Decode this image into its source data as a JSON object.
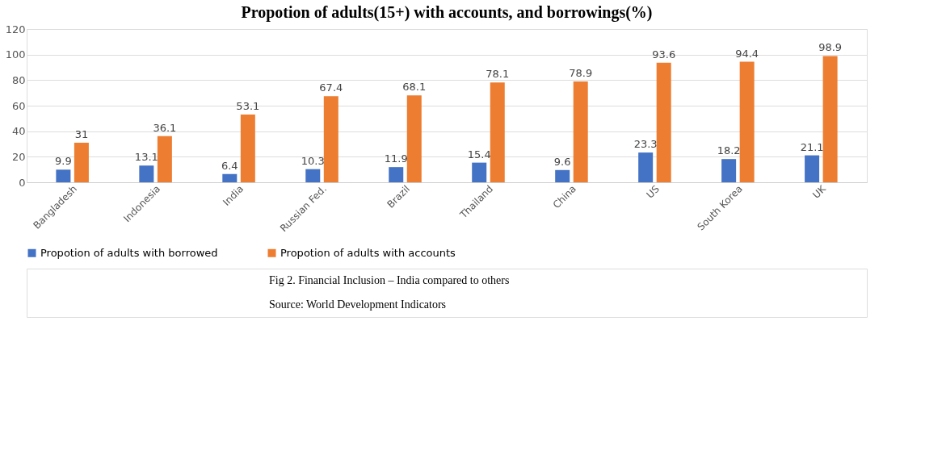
{
  "chart_data": {
    "type": "bar",
    "title": "Propotion of adults(15+) with accounts, and borrowings(%)",
    "categories": [
      "Bangladesh",
      "Indonesia",
      "India",
      "Russian Fed.",
      "Brazil",
      "Thailand",
      "China",
      "US",
      "South Korea",
      "UK"
    ],
    "series": [
      {
        "name": "Propotion of adults with borrowed",
        "color": "#4472c4",
        "values": [
          9.9,
          13.1,
          6.4,
          10.3,
          11.9,
          15.4,
          9.6,
          23.3,
          18.2,
          21.1
        ]
      },
      {
        "name": "Propotion of adults with accounts",
        "color": "#ed7d31",
        "values": [
          31,
          36.1,
          53.1,
          67.4,
          68.1,
          78.1,
          78.9,
          93.6,
          94.4,
          98.9
        ]
      }
    ],
    "ylim": [
      0,
      120
    ],
    "yticks": [
      0,
      20,
      40,
      60,
      80,
      100,
      120
    ],
    "grid": "y",
    "legend": "bottom",
    "data_labels": true,
    "annotations": [
      "Fig 2. Financial Inclusion – India compared to others",
      "Source: World Development Indicators"
    ]
  }
}
